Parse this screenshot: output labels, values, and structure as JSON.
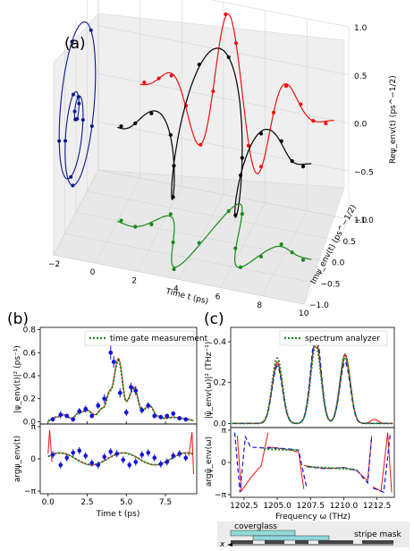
{
  "panel_labels": {
    "a": "(a)",
    "b": "(b)",
    "c": "(c)"
  },
  "panel_a": {
    "xticks": [
      "−2",
      "0",
      "2",
      "4",
      "6",
      "8",
      "10"
    ],
    "xlabel": "Time t (ps)",
    "yticks": [
      "−1.0",
      "−0.5",
      "0.0",
      "0.5",
      "1.0"
    ],
    "ylabel": "Imψ_env(t) (ps^−1/2)",
    "zticks": [
      "1.0",
      "0.5",
      "0.0",
      "−0.5",
      "−1.0"
    ],
    "zlabel": "Reψ_env(t) (ps^−1/2)"
  },
  "panel_b": {
    "top_yticks": [
      "0.0",
      "0.2",
      "0.4",
      "0.6",
      "0.8"
    ],
    "top_ylabel": "|ψ_env(t)|² (ps⁻¹)",
    "legend": "time gate measurement",
    "bottom_yticks": [
      "π",
      "0",
      "−π"
    ],
    "bottom_ylabel": "argψ_env(t)",
    "xticks": [
      "0.0",
      "2.5",
      "5.0",
      "7.5"
    ],
    "xlabel": "Time t (ps)"
  },
  "panel_c": {
    "top_yticks": [
      "0.0",
      "0.2",
      "0.4",
      "0.6"
    ],
    "top_ylabel": "|ψ̃_env(ω)|² (THz⁻¹)",
    "legend": "spectrum analyzer",
    "bottom_yticks": [
      "π",
      "0",
      "−π"
    ],
    "bottom_ylabel": "argψ̃_env(ω)",
    "xticks": [
      "1202.5",
      "1205.0",
      "1207.5",
      "1210.0",
      "1212.5"
    ],
    "xlabel": "Frequency ω (THz)"
  },
  "schematic": {
    "coverglass": "coverglass",
    "stripe_mask": "stripe mask",
    "axis": "x"
  },
  "colors": {
    "navy": "#0b1a8a",
    "red": "#ee1111",
    "black": "#000000",
    "green": "#1a8a1a",
    "blue": "#1414d8",
    "teal": "#8fd9d9",
    "gray": "#555555"
  },
  "chart_data": [
    {
      "type": "line",
      "panel": "a",
      "x_unit": "ps",
      "xlim": [
        -2,
        10
      ],
      "ylim": [
        -1,
        1
      ],
      "zlim": [
        -1,
        1
      ],
      "series": [
        {
          "color": "black",
          "t": [
            0.0,
            1.0,
            2.0,
            3.0,
            4.0,
            5.0,
            6.0,
            7.0,
            8.0,
            9.0
          ]
        },
        {
          "color": "red",
          "t": [
            0.0,
            1.0,
            2.0,
            3.0,
            4.0,
            5.0,
            6.0,
            7.0,
            8.0,
            9.0
          ]
        },
        {
          "color": "green",
          "t": [
            0.0,
            1.0,
            2.0,
            3.0,
            4.0,
            5.0,
            6.0,
            7.0,
            8.0,
            9.0
          ]
        },
        {
          "color": "navy",
          "t": [
            0.0,
            1.0,
            2.0,
            3.0,
            4.0,
            5.0,
            6.0,
            7.0,
            8.0,
            9.0
          ]
        }
      ]
    },
    {
      "type": "line",
      "panel": "b-top",
      "xlim": [
        -0.5,
        9.5
      ],
      "ylim": [
        -0.02,
        0.82
      ],
      "fit": {
        "x": [
          0.0,
          0.5,
          1.0,
          1.5,
          2.0,
          2.5,
          3.0,
          3.5,
          4.0,
          4.5,
          5.0,
          5.5,
          6.0,
          6.5,
          7.0,
          7.5,
          8.0,
          8.5,
          9.0,
          9.3
        ],
        "y": [
          0.01,
          0.04,
          0.06,
          0.03,
          0.08,
          0.1,
          0.06,
          0.12,
          0.28,
          0.55,
          0.18,
          0.3,
          0.1,
          0.14,
          0.05,
          0.03,
          0.04,
          0.03,
          0.02,
          0.01
        ]
      },
      "points": {
        "x": [
          0.3,
          0.8,
          1.2,
          1.6,
          2.0,
          2.4,
          2.8,
          3.2,
          3.6,
          4.0,
          4.2,
          4.6,
          5.0,
          5.3,
          5.6,
          6.0,
          6.4,
          6.8,
          7.2,
          7.6,
          8.0,
          8.4,
          8.8
        ],
        "y": [
          0.02,
          0.06,
          0.05,
          0.02,
          0.09,
          0.11,
          0.05,
          0.14,
          0.2,
          0.6,
          0.52,
          0.25,
          0.08,
          0.3,
          0.27,
          0.1,
          0.14,
          0.05,
          0.04,
          0.05,
          0.07,
          0.03,
          0.02
        ],
        "err": [
          0.02,
          0.03,
          0.02,
          0.02,
          0.03,
          0.03,
          0.02,
          0.03,
          0.04,
          0.06,
          0.05,
          0.04,
          0.03,
          0.04,
          0.04,
          0.03,
          0.03,
          0.02,
          0.02,
          0.02,
          0.02,
          0.02,
          0.02
        ]
      }
    },
    {
      "type": "line",
      "panel": "b-bottom",
      "xlim": [
        -0.5,
        9.5
      ],
      "ylim": [
        -3.4,
        3.4
      ],
      "points": {
        "x": [
          0.3,
          0.8,
          1.2,
          1.6,
          2.0,
          2.4,
          2.8,
          3.2,
          3.6,
          4.0,
          4.4,
          4.8,
          5.2,
          5.6,
          6.0,
          6.4,
          6.8,
          7.2,
          7.6,
          8.0,
          8.4,
          8.8
        ],
        "y": [
          0.4,
          -0.6,
          0.1,
          0.6,
          0.8,
          0.3,
          -0.4,
          -0.6,
          0.2,
          0.7,
          0.5,
          -0.1,
          -0.6,
          -0.3,
          0.4,
          0.6,
          0.1,
          -0.5,
          -0.3,
          0.3,
          0.5,
          0.1
        ]
      }
    },
    {
      "type": "line",
      "panel": "c-top",
      "xlim": [
        1201.5,
        1213.8
      ],
      "ylim": [
        -0.02,
        0.47
      ],
      "series": [
        {
          "name": "spectrum analyzer",
          "color": "green",
          "peaks": [
            [
              1205.0,
              0.32
            ],
            [
              1207.9,
              0.38
            ],
            [
              1210.1,
              0.33
            ]
          ]
        },
        {
          "color": "blue",
          "peaks": [
            [
              1205.0,
              0.28
            ],
            [
              1207.9,
              0.44
            ],
            [
              1210.1,
              0.3
            ]
          ]
        },
        {
          "color": "red",
          "peaks": [
            [
              1205.0,
              0.3
            ],
            [
              1207.9,
              0.4
            ],
            [
              1210.1,
              0.34
            ]
          ]
        },
        {
          "color": "gray",
          "peaks": [
            [
              1205.0,
              0.29
            ],
            [
              1207.9,
              0.41
            ],
            [
              1210.1,
              0.32
            ]
          ]
        }
      ]
    },
    {
      "type": "line",
      "panel": "c-bottom",
      "xlim": [
        1201.5,
        1213.8
      ],
      "ylim": [
        -3.4,
        3.4
      ]
    }
  ]
}
